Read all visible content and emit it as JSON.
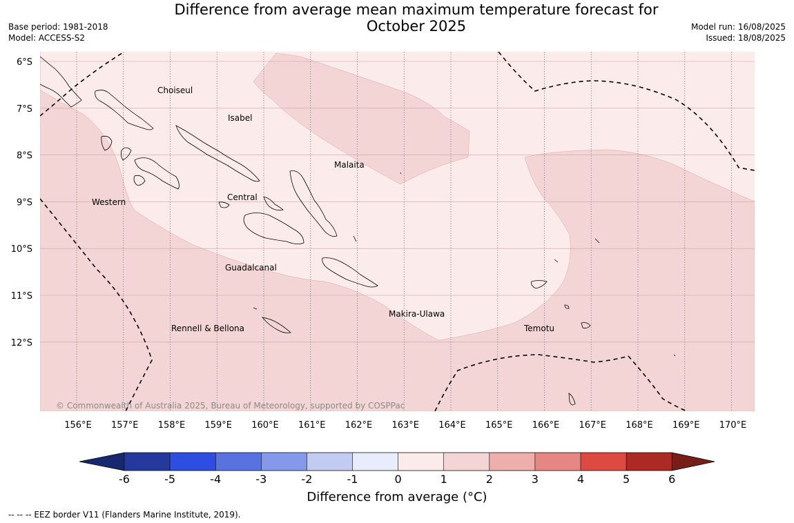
{
  "title": {
    "line1": "Difference from average mean maximum temperature forecast for",
    "line2": "October 2025"
  },
  "meta": {
    "base_period": "Base period: 1981-2018",
    "model": "Model: ACCESS-S2",
    "model_run": "Model run: 16/08/2025",
    "issued": "Issued: 18/08/2025"
  },
  "map": {
    "lat_ticks": [
      "6°S",
      "7°S",
      "8°S",
      "9°S",
      "10°S",
      "11°S",
      "12°S"
    ],
    "lon_ticks": [
      "156°E",
      "157°E",
      "158°E",
      "159°E",
      "160°E",
      "161°E",
      "162°E",
      "163°E",
      "164°E",
      "165°E",
      "166°E",
      "167°E",
      "168°E",
      "169°E",
      "170°E"
    ],
    "regions": [
      "Choiseul",
      "Isabel",
      "Malaita",
      "Central",
      "Western",
      "Guadalcanal",
      "Makira-Ulawa",
      "Rennell & Bellona",
      "Temotu"
    ],
    "copyright": "© Commonwealth of Australia 2025, Bureau of Meteorology, supported by COSPPac",
    "fill_colors": {
      "0_to_1": "#fbebea",
      "1_to_2": "#f4d5d5"
    }
  },
  "colorbar": {
    "ticks": [
      "-6",
      "-5",
      "-4",
      "-3",
      "-2",
      "-1",
      "0",
      "1",
      "2",
      "3",
      "4",
      "5",
      "6"
    ],
    "colors": [
      "#25399c",
      "#2d4ee0",
      "#5872e0",
      "#8598ea",
      "#c2cbf2",
      "#e8ecfb",
      "#fbebea",
      "#f4d5d5",
      "#edaeac",
      "#e58883",
      "#dd4a41",
      "#ab2a24"
    ],
    "under_color": "#18286f",
    "over_color": "#781e19",
    "label": "Difference from average (°C)"
  },
  "footnote": "--  --  -- EEZ border V11 (Flanders Marine Institute, 2019)."
}
